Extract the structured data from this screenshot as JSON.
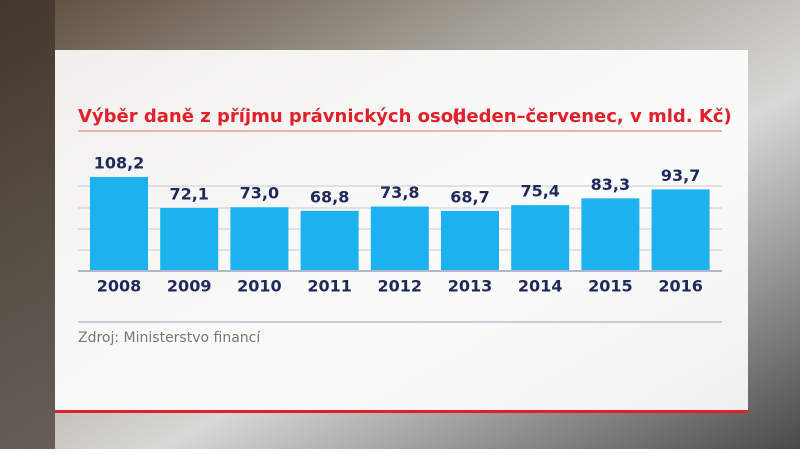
{
  "chart_data": {
    "type": "bar",
    "title": "Výběr daně z příjmu právnických osob",
    "subtitle": "(leden–červenec, v mld. Kč)",
    "categories": [
      "2008",
      "2009",
      "2010",
      "2011",
      "2012",
      "2013",
      "2014",
      "2015",
      "2016"
    ],
    "values": [
      108.2,
      72.1,
      73.0,
      68.8,
      73.8,
      68.7,
      75.4,
      83.3,
      93.7
    ],
    "value_labels": [
      "108,2",
      "72,1",
      "73,0",
      "68,8",
      "73,8",
      "68,7",
      "75,4",
      "83,3",
      "93,7"
    ],
    "color": "#1cb2f0",
    "source": "Zdroj: Ministerstvo financí"
  }
}
